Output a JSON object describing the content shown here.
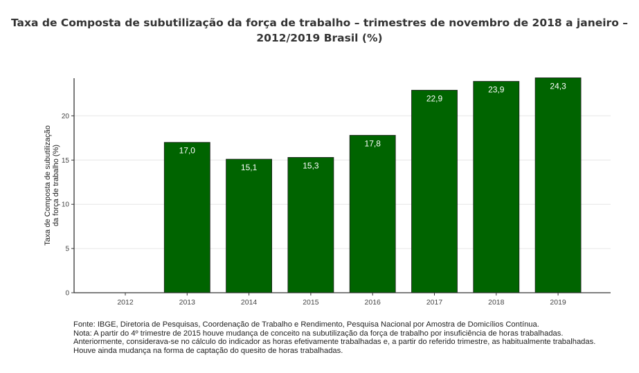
{
  "chart_data": {
    "type": "bar",
    "title_line1": "Taxa de Composta de subutilização da força de trabalho – trimestres de novembro de 2018 a janeiro –",
    "title_line2": "2012/2019 Brasil (%)",
    "ylabel_line1": "Taxa de Composta de subutilização",
    "ylabel_line2": "da força de trabalho (%)",
    "categories": [
      "2012",
      "2013",
      "2014",
      "2015",
      "2016",
      "2017",
      "2018",
      "2019"
    ],
    "values": [
      null,
      17.0,
      15.1,
      15.3,
      17.8,
      22.9,
      23.9,
      24.3
    ],
    "value_labels": [
      "",
      "17,0",
      "15,1",
      "15,3",
      "17,8",
      "22,9",
      "23,9",
      "24,3"
    ],
    "yticks": [
      "0",
      "5",
      "10",
      "15",
      "20"
    ],
    "ylim": [
      0,
      25
    ],
    "bar_color": "#006400",
    "grid": true,
    "legend": false
  },
  "footer": {
    "line1": "Fonte: IBGE, Diretoria de Pesquisas, Coordenação de Trabalho e Rendimento, Pesquisa Nacional por Amostra de Domicílios Contínua.",
    "line2": "Nota: A partir do 4º trimestre de 2015 houve mudança de conceito na subutilização da força de trabalho por insuficiência de horas trabalhadas.",
    "line3": "Anteriormente, considerava-se no cálculo do indicador as horas efetivamente trabalhadas e, a partir do referido trimestre, as habitualmente trabalhadas.",
    "line4": "Houve ainda mudança na forma de captação do quesito de horas trabalhadas."
  }
}
